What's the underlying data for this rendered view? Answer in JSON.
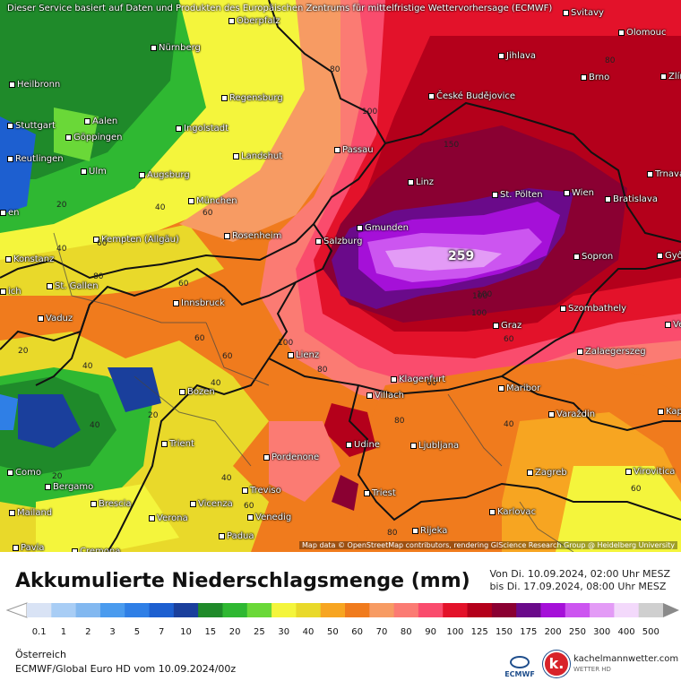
{
  "header_note": "Dieser Service basiert auf Daten und Produkten des Europäischen Zentrums für mittelfristige Wettervorhersage (ECMWF)",
  "attribution": "Map data © OpenStreetMap contributors, rendering GIScience Research Group @ Heidelberg University",
  "title": "Akkumulierte Niederschlagsmenge (mm)",
  "period": {
    "from": "Von Di. 10.09.2024, 02:00 Uhr MESZ",
    "to": "bis Di. 17.09.2024, 08:00 Uhr MESZ"
  },
  "region": "Österreich",
  "model": "ECMWF/Global Euro HD vom  10.09.2024/00z",
  "logos": {
    "ecmwf": "ECMWF",
    "kachelmann": "kachelmannwetter.com",
    "kachelmann_sub": "WETTER HD",
    "kachelmann_mark": "k."
  },
  "max_label": "259",
  "legend": {
    "values": [
      "0.1",
      "1",
      "2",
      "3",
      "5",
      "7",
      "10",
      "15",
      "20",
      "25",
      "30",
      "40",
      "50",
      "60",
      "70",
      "80",
      "90",
      "100",
      "125",
      "150",
      "175",
      "200",
      "250",
      "300",
      "400",
      "500"
    ],
    "colors": [
      "#d9e3f5",
      "#a8cdf5",
      "#82b8f0",
      "#4a9bee",
      "#2f7fe6",
      "#1d5fd0",
      "#1a3f9c",
      "#1f8a2a",
      "#2fb832",
      "#6ad838",
      "#f4f53c",
      "#e9d92a",
      "#f7a521",
      "#f07b1d",
      "#f79b63",
      "#fb7b73",
      "#fa4c6d",
      "#e3122a",
      "#b4001b",
      "#8a0032",
      "#6a0a8a",
      "#a510d8",
      "#cc55f0",
      "#e39bf6",
      "#f3d9fb",
      "#cfcfcf"
    ]
  },
  "cities": [
    {
      "name": "Oberpfalz"
    },
    {
      "name": "Nürnberg"
    },
    {
      "name": "Heilbronn"
    },
    {
      "name": "Regensburg"
    },
    {
      "name": "Stuttgart"
    },
    {
      "name": "Aalen"
    },
    {
      "name": "Göppingen"
    },
    {
      "name": "Ingolstadt"
    },
    {
      "name": "Reutlingen"
    },
    {
      "name": "Ulm"
    },
    {
      "name": "Landshut"
    },
    {
      "name": "Augsburg"
    },
    {
      "name": "München"
    },
    {
      "name": "Passau"
    },
    {
      "name": "Kempten (Allgäu)"
    },
    {
      "name": "Rosenheim"
    },
    {
      "name": "Konstanz"
    },
    {
      "name": "St. Gallen"
    },
    {
      "name": "Salzburg"
    },
    {
      "name": "Gmunden"
    },
    {
      "name": "Linz"
    },
    {
      "name": "St. Pölten"
    },
    {
      "name": "Wien"
    },
    {
      "name": "Bratislava"
    },
    {
      "name": "České Budějovice"
    },
    {
      "name": "Jihlava"
    },
    {
      "name": "Brno"
    },
    {
      "name": "Olomouc"
    },
    {
      "name": "Svitavy"
    },
    {
      "name": "Zlín"
    },
    {
      "name": "Trnava"
    },
    {
      "name": "Vaduz"
    },
    {
      "name": "Innsbruck"
    },
    {
      "name": "Lienz"
    },
    {
      "name": "Sopron"
    },
    {
      "name": "Győr"
    },
    {
      "name": "Szombathely"
    },
    {
      "name": "Graz"
    },
    {
      "name": "Zalaegerszeg"
    },
    {
      "name": "Bozen"
    },
    {
      "name": "Klagenfurt"
    },
    {
      "name": "Villach"
    },
    {
      "name": "Maribor"
    },
    {
      "name": "Varaždin"
    },
    {
      "name": "Kapo"
    },
    {
      "name": "Trient"
    },
    {
      "name": "Udine"
    },
    {
      "name": "Ljubljana"
    },
    {
      "name": "Pordenone"
    },
    {
      "name": "Zagreb"
    },
    {
      "name": "Virovitica"
    },
    {
      "name": "Como"
    },
    {
      "name": "Bergamo"
    },
    {
      "name": "Brescia"
    },
    {
      "name": "Vicenza"
    },
    {
      "name": "Treviso"
    },
    {
      "name": "Triest"
    },
    {
      "name": "Mailand"
    },
    {
      "name": "Verona"
    },
    {
      "name": "Venedig"
    },
    {
      "name": "Padua"
    },
    {
      "name": "Karlovac"
    },
    {
      "name": "Rijeka"
    },
    {
      "name": "Pavia"
    },
    {
      "name": "Cremona"
    },
    {
      "name": "ich"
    },
    {
      "name": "en"
    },
    {
      "name": "Ves"
    }
  ],
  "contour_labels": [
    "80",
    "100",
    "60",
    "40",
    "60",
    "80",
    "20",
    "40",
    "60",
    "60",
    "20",
    "40",
    "20",
    "60",
    "80",
    "100",
    "100",
    "60",
    "40",
    "40",
    "60",
    "60",
    "20",
    "80",
    "100",
    "40",
    "80",
    "60",
    "80",
    "150",
    "40",
    "100"
  ]
}
